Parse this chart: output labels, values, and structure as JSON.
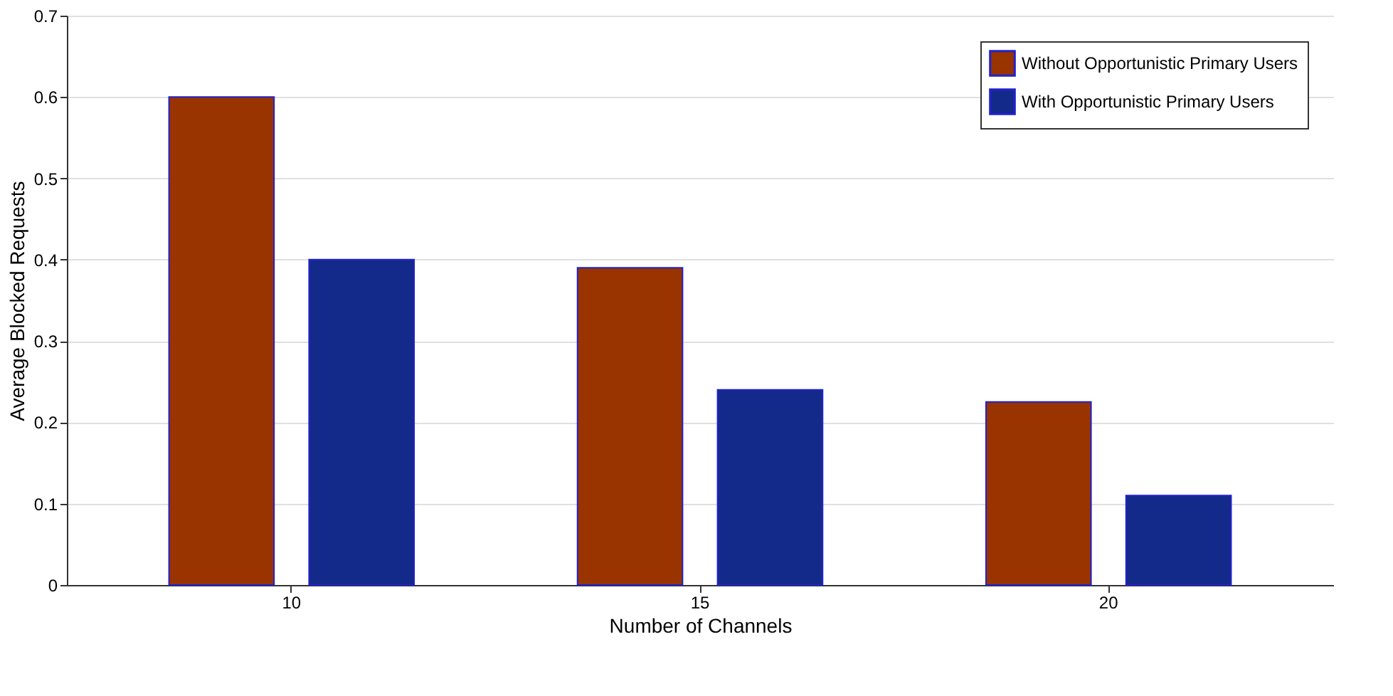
{
  "chart_data": {
    "type": "bar",
    "xlabel": "Number of Channels",
    "ylabel": "Average Blocked Requests",
    "categories": [
      "10",
      "15",
      "20"
    ],
    "series": [
      {
        "name": "Without Opportunistic Primary Users",
        "color": "#993300",
        "values": [
          0.6,
          0.39,
          0.225
        ]
      },
      {
        "name": "With Opportunistic Primary Users",
        "color": "#142a8a",
        "values": [
          0.4,
          0.24,
          0.11
        ]
      }
    ],
    "ylim": [
      0,
      0.7
    ],
    "yticks": [
      0,
      0.1,
      0.2,
      0.3,
      0.4,
      0.5,
      0.6,
      0.7
    ],
    "grid": "y",
    "legend": "top right"
  }
}
